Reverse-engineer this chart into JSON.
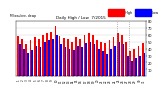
{
  "title": "Daily High / Low  7/2015",
  "ylabel_left": "Milwaukee, dewp",
  "legend_high": "High",
  "legend_low": "Low",
  "bar_color_high": "#ff0000",
  "bar_color_low": "#0000ff",
  "background_color": "#ffffff",
  "plot_bg": "#ffffff",
  "ylim": [
    0,
    80
  ],
  "yticks": [
    10,
    20,
    30,
    40,
    50,
    60,
    70,
    80
  ],
  "n_days": 31,
  "day_labels": [
    "1",
    "2",
    "3",
    "4",
    "5",
    "6",
    "7",
    "8",
    "9",
    "10",
    "11",
    "12",
    "13",
    "14",
    "15",
    "16",
    "17",
    "18",
    "19",
    "20",
    "21",
    "22",
    "23",
    "24",
    "25",
    "26",
    "27",
    "28",
    "29",
    "30",
    "31"
  ],
  "highs": [
    58,
    54,
    46,
    52,
    56,
    54,
    60,
    62,
    64,
    72,
    58,
    55,
    54,
    50,
    56,
    54,
    60,
    62,
    60,
    52,
    50,
    48,
    52,
    56,
    62,
    60,
    50,
    36,
    40,
    44,
    48
  ],
  "lows": [
    46,
    40,
    34,
    38,
    44,
    42,
    50,
    52,
    54,
    60,
    46,
    42,
    40,
    38,
    44,
    42,
    48,
    50,
    46,
    40,
    36,
    32,
    40,
    44,
    50,
    46,
    30,
    22,
    26,
    30,
    34
  ],
  "dotted_lines": [
    23.5,
    26.5
  ],
  "bar_width": 0.42
}
